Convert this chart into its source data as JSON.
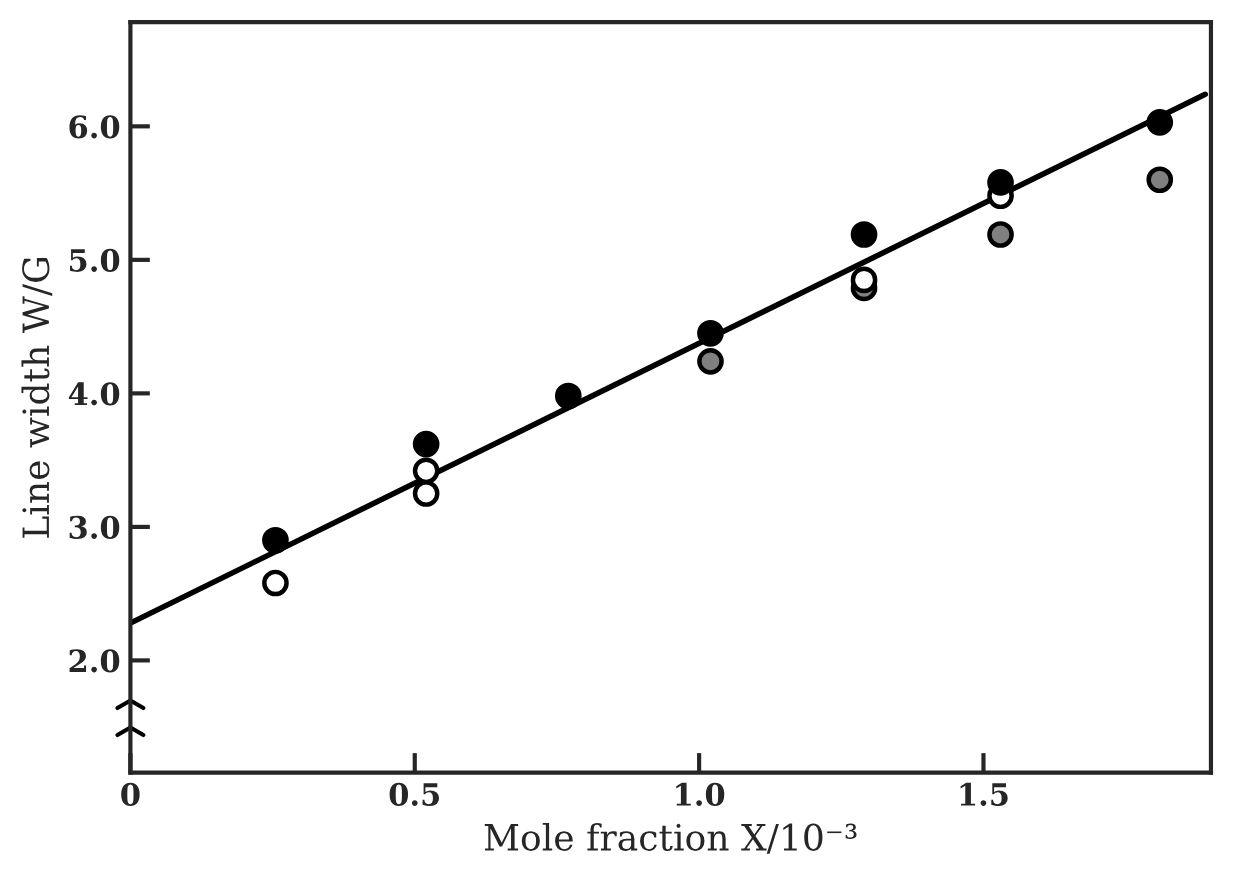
{
  "chart_data": {
    "type": "scatter",
    "xlabel": "Mole fraction X/10⁻³",
    "ylabel": "Line width W/G",
    "xlim": [
      0,
      1.9
    ],
    "ylim": [
      1.16,
      6.78
    ],
    "xticks": [
      {
        "value": 0,
        "label": "0"
      },
      0.5,
      {
        "value": 1.0,
        "label": "1.0"
      },
      1.5
    ],
    "yticks": [
      {
        "value": 2,
        "label": "2.0"
      },
      {
        "value": 3,
        "label": "3.0"
      },
      {
        "value": 4,
        "label": "4.0"
      },
      {
        "value": 5,
        "label": "5.0"
      },
      {
        "value": 6,
        "label": "6.0"
      }
    ],
    "grid": false,
    "marker": "circle",
    "series": [
      {
        "color": "#000000",
        "x": [
          0.255,
          0.52,
          0.77,
          1.02,
          1.29,
          1.53,
          1.81
        ],
        "values": [
          2.9,
          3.62,
          3.98,
          4.45,
          5.19,
          5.58,
          6.03
        ]
      },
      {
        "color": "#ffffff",
        "x": [
          0.255,
          0.52,
          0.52,
          1.29,
          1.53
        ],
        "values": [
          2.58,
          3.25,
          3.42,
          4.85,
          5.48
        ]
      },
      {
        "color": "#808080",
        "x": [
          1.02,
          1.29,
          1.53,
          1.81
        ],
        "values": [
          4.24,
          4.79,
          5.19,
          5.6
        ]
      },
      {
        "type": "line",
        "marker": "none",
        "color": "#000000",
        "x": [
          0,
          1.89
        ],
        "values": [
          2.28,
          6.24
        ]
      }
    ]
  }
}
